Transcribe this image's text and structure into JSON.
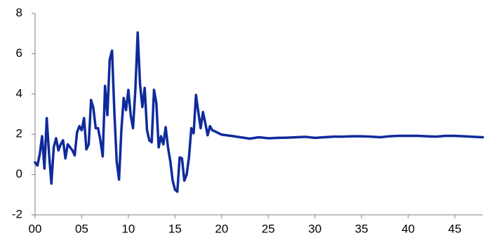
{
  "chart_data": {
    "type": "line",
    "x": [
      0,
      0.25,
      0.5,
      0.75,
      1,
      1.25,
      1.5,
      1.75,
      2,
      2.25,
      2.5,
      2.75,
      3,
      3.25,
      3.5,
      3.75,
      4,
      4.25,
      4.5,
      4.75,
      5,
      5.25,
      5.5,
      5.75,
      6,
      6.25,
      6.5,
      6.75,
      7,
      7.25,
      7.5,
      7.75,
      8,
      8.25,
      8.5,
      8.75,
      9,
      9.25,
      9.5,
      9.75,
      10,
      10.25,
      10.5,
      10.75,
      11,
      11.25,
      11.5,
      11.75,
      12,
      12.25,
      12.5,
      12.75,
      13,
      13.25,
      13.5,
      13.75,
      14,
      14.25,
      14.5,
      14.75,
      15,
      15.25,
      15.5,
      15.75,
      16,
      16.25,
      16.5,
      16.75,
      17,
      17.25,
      17.5,
      17.75,
      18,
      18.25,
      18.5,
      18.75,
      19,
      19.25,
      20,
      21,
      22,
      23,
      24,
      25,
      26,
      27,
      28,
      29,
      30,
      31,
      32,
      33,
      34,
      35,
      36,
      37,
      38,
      39,
      40,
      41,
      42,
      43,
      44,
      45,
      46,
      47,
      48
    ],
    "values": [
      0.6,
      0.45,
      1.0,
      1.9,
      0.3,
      2.8,
      1.0,
      -0.45,
      1.35,
      1.8,
      1.2,
      1.5,
      1.7,
      0.8,
      1.5,
      1.35,
      1.2,
      0.95,
      2.1,
      2.4,
      2.2,
      2.8,
      1.25,
      1.5,
      3.7,
      3.3,
      2.3,
      2.3,
      1.7,
      0.9,
      4.4,
      2.95,
      5.7,
      6.15,
      3.1,
      0.65,
      -0.25,
      2.2,
      3.8,
      3.2,
      4.2,
      2.95,
      2.3,
      4.2,
      7.05,
      4.5,
      3.35,
      4.3,
      2.2,
      1.7,
      1.6,
      4.2,
      3.55,
      1.35,
      1.9,
      1.5,
      2.35,
      1.35,
      0.65,
      -0.3,
      -0.75,
      -0.85,
      0.85,
      0.8,
      -0.3,
      0,
      0.85,
      2.3,
      2.05,
      3.95,
      3.1,
      2.3,
      3.1,
      2.55,
      1.95,
      2.4,
      2.2,
      2.15,
      1.98,
      1.92,
      1.85,
      1.78,
      1.85,
      1.8,
      1.82,
      1.83,
      1.85,
      1.87,
      1.82,
      1.85,
      1.88,
      1.88,
      1.9,
      1.9,
      1.88,
      1.85,
      1.9,
      1.92,
      1.92,
      1.92,
      1.9,
      1.88,
      1.92,
      1.92,
      1.9,
      1.87,
      1.85
    ],
    "color": "#0f2a9c",
    "xlim": [
      0,
      48
    ],
    "xticks": [
      {
        "value": 0,
        "label": "00"
      },
      {
        "value": 5,
        "label": "05"
      },
      10,
      15,
      20,
      25,
      30,
      35,
      40,
      45
    ],
    "ylim": [
      -2,
      8
    ],
    "yticks": [
      -2,
      0,
      2,
      4,
      6,
      8
    ],
    "grid": false
  }
}
